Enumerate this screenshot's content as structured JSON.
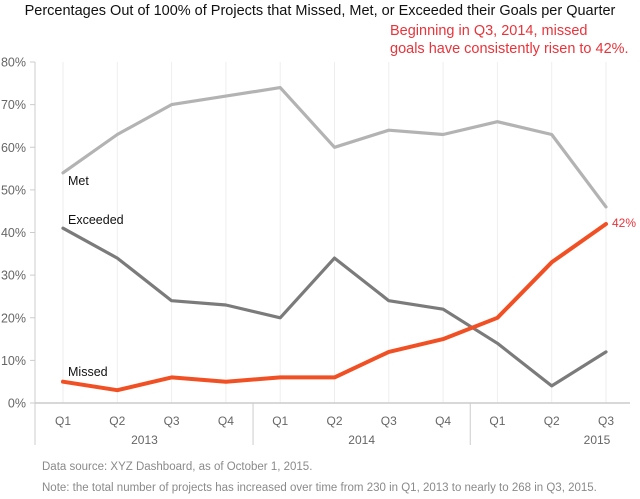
{
  "chart_data": {
    "type": "line",
    "title": "Percentages Out of 100% of Projects that Missed, Met, or Exceeded their Goals per Quarter",
    "annotation": "Beginning in Q3, 2014, missed goals have consistently risen to 42%.",
    "annotation_lines": [
      "Beginning in Q3, 2014, missed",
      "goals have consistently risen to 42%."
    ],
    "xlabel": "",
    "ylabel": "",
    "ylim": [
      0,
      80
    ],
    "yticks": [
      "0%",
      "10%",
      "20%",
      "30%",
      "40%",
      "50%",
      "60%",
      "70%",
      "80%"
    ],
    "ytick_values": [
      0,
      10,
      20,
      30,
      40,
      50,
      60,
      70,
      80
    ],
    "categories": [
      "Q1",
      "Q2",
      "Q3",
      "Q4",
      "Q1",
      "Q2",
      "Q3",
      "Q4",
      "Q1",
      "Q2",
      "Q3"
    ],
    "groups": [
      {
        "label": "2013",
        "count": 4
      },
      {
        "label": "2014",
        "count": 4
      },
      {
        "label": "2015",
        "count": 3
      }
    ],
    "grid": "vertical-light",
    "legend": "inline-labels",
    "series": [
      {
        "name": "Met",
        "label": "Met",
        "color": "#b3b3b3",
        "values": [
          54,
          63,
          70,
          72,
          74,
          60,
          64,
          63,
          66,
          63,
          46
        ]
      },
      {
        "name": "Exceeded",
        "label": "Exceeded",
        "color": "#7b7b7b",
        "values": [
          41,
          34,
          24,
          23,
          20,
          34,
          24,
          22,
          14,
          4,
          12
        ]
      },
      {
        "name": "Missed",
        "label": "Missed",
        "color": "#f05023",
        "values": [
          5,
          3,
          6,
          5,
          6,
          6,
          12,
          15,
          20,
          33,
          42
        ]
      }
    ],
    "end_label": {
      "series": "Missed",
      "text": "42%",
      "color": "#e8343b"
    },
    "footnotes": [
      "Data source: XYZ Dashboard, as of October 1, 2015.",
      "Note: the total number of projects has increased over time from 230 in Q1, 2013 to nearly to 268 in Q3, 2015."
    ]
  }
}
